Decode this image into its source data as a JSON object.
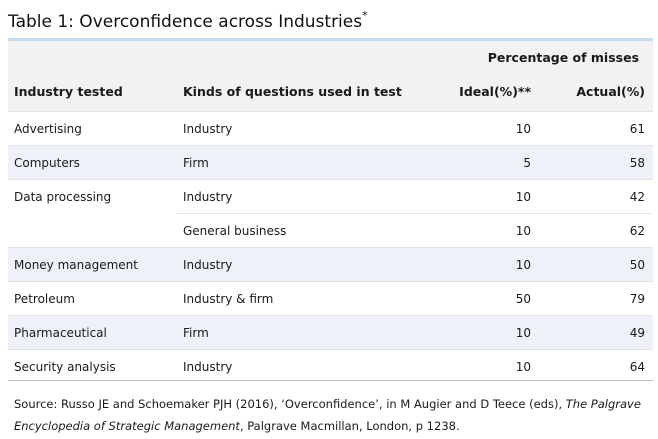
{
  "title": "Table 1: Overconfidence across Industries",
  "title_mark": "*",
  "header": {
    "group_label": "Percentage of misses",
    "col_industry": "Industry tested",
    "col_questions": "Kinds of questions used in test",
    "col_ideal": "Ideal(%)**",
    "col_actual": "Actual(%)"
  },
  "rows": [
    {
      "industry": "Advertising",
      "questions": "Industry",
      "ideal": "10",
      "actual": "61"
    },
    {
      "industry": "Computers",
      "questions": "Firm",
      "ideal": "5",
      "actual": "58"
    },
    {
      "industry": "Data processing",
      "questions": "Industry",
      "ideal": "10",
      "actual": "42"
    },
    {
      "industry": "",
      "questions": "General business",
      "ideal": "10",
      "actual": "62"
    },
    {
      "industry": "Money management",
      "questions": "Industry",
      "ideal": "10",
      "actual": "50"
    },
    {
      "industry": "Petroleum",
      "questions": "Industry & firm",
      "ideal": "50",
      "actual": "79"
    },
    {
      "industry": "Pharmaceutical",
      "questions": "Firm",
      "ideal": "10",
      "actual": "49"
    },
    {
      "industry": "Security analysis",
      "questions": "Industry",
      "ideal": "10",
      "actual": "64"
    }
  ],
  "source": {
    "prefix": "Source: Russo JE and Schoemaker PJH (2016), ‘Overconfidence’, in M Augier and D Teece (eds), ",
    "book": "The Palgrave Encyclopedia of Strategic Management",
    "suffix": ", Palgrave Macmillan, London, p 1238."
  },
  "colors": {
    "header_bg": "#f2f2f2",
    "shade_row": "#eef1f8",
    "top_rule": "#c7dcef"
  }
}
